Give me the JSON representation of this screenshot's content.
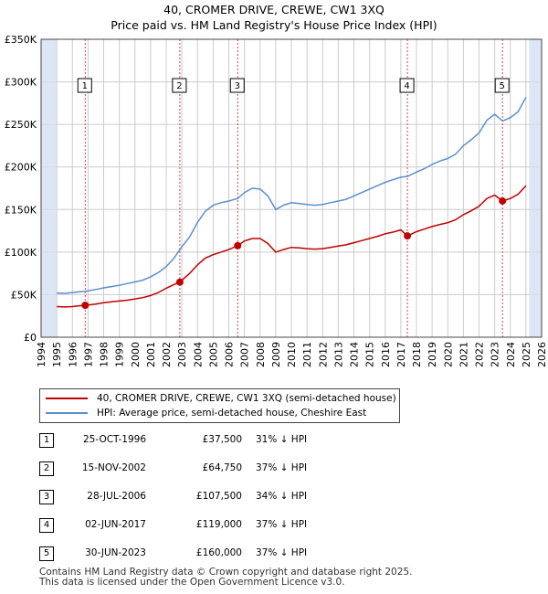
{
  "title": {
    "line1": "40, CROMER DRIVE, CREWE, CW1 3XQ",
    "line2": "Price paid vs. HM Land Registry's House Price Index (HPI)"
  },
  "colors": {
    "property": "#c00000",
    "hpi": "#5b8fd1",
    "shade": "#dde6f4",
    "grid": "#cccccc",
    "vline": "#cc4444"
  },
  "legend": {
    "property_label": "40, CROMER DRIVE, CREWE, CW1 3XQ (semi-detached house)",
    "hpi_label": "HPI: Average price, semi-detached house, Cheshire East"
  },
  "sales": [
    {
      "num": "1",
      "date": "25-OCT-1996",
      "price": "£37,500",
      "hpi": "31% ↓ HPI",
      "t": 1996.82,
      "value": 37500
    },
    {
      "num": "2",
      "date": "15-NOV-2002",
      "price": "£64,750",
      "hpi": "37% ↓ HPI",
      "t": 2002.87,
      "value": 64750
    },
    {
      "num": "3",
      "date": "28-JUL-2006",
      "price": "£107,500",
      "hpi": "34% ↓ HPI",
      "t": 2006.57,
      "value": 107500
    },
    {
      "num": "4",
      "date": "02-JUN-2017",
      "price": "£119,000",
      "hpi": "37% ↓ HPI",
      "t": 2017.42,
      "value": 119000
    },
    {
      "num": "5",
      "date": "30-JUN-2023",
      "price": "£160,000",
      "hpi": "37% ↓ HPI",
      "t": 2023.5,
      "value": 160000
    }
  ],
  "footer": {
    "line1": "Contains HM Land Registry data © Crown copyright and database right 2025.",
    "line2": "This data is licensed under the Open Government Licence v3.0."
  },
  "chart_data": {
    "type": "line",
    "title": "40, CROMER DRIVE, CREWE, CW1 3XQ — Price paid vs. HM Land Registry's House Price Index (HPI)",
    "xlabel": "",
    "ylabel": "",
    "xlim": [
      1994,
      2026
    ],
    "ylim": [
      0,
      350000
    ],
    "grid": true,
    "legend_position": "below",
    "x_ticks": [
      "1994",
      "1995",
      "1996",
      "1997",
      "1998",
      "1999",
      "2000",
      "2001",
      "2002",
      "2003",
      "2004",
      "2005",
      "2006",
      "2007",
      "2008",
      "2009",
      "2010",
      "2011",
      "2012",
      "2013",
      "2014",
      "2015",
      "2016",
      "2017",
      "2018",
      "2019",
      "2020",
      "2021",
      "2022",
      "2023",
      "2024",
      "2025",
      "2026"
    ],
    "y_ticks": [
      {
        "value": 0,
        "label": "£0"
      },
      {
        "value": 50000,
        "label": "£50K"
      },
      {
        "value": 100000,
        "label": "£100K"
      },
      {
        "value": 150000,
        "label": "£150K"
      },
      {
        "value": 200000,
        "label": "£200K"
      },
      {
        "value": 250000,
        "label": "£250K"
      },
      {
        "value": 300000,
        "label": "£300K"
      },
      {
        "value": 350000,
        "label": "£350K"
      }
    ],
    "shaded_ranges": [
      [
        1994,
        1995
      ],
      [
        2025.2,
        2026
      ]
    ],
    "series": [
      {
        "name": "HPI: Average price, semi-detached house, Cheshire East",
        "x": [
          1995.0,
          1995.5,
          1996.0,
          1996.5,
          1996.82,
          1997.5,
          1998.0,
          1998.5,
          1999.0,
          1999.5,
          2000.0,
          2000.5,
          2001.0,
          2001.5,
          2002.0,
          2002.5,
          2002.87,
          2003.5,
          2004.0,
          2004.5,
          2005.0,
          2005.5,
          2006.0,
          2006.57,
          2007.0,
          2007.5,
          2008.0,
          2008.5,
          2009.0,
          2009.5,
          2010.0,
          2010.5,
          2011.0,
          2011.5,
          2012.0,
          2012.5,
          2013.0,
          2013.5,
          2014.0,
          2014.5,
          2015.0,
          2015.5,
          2016.0,
          2016.5,
          2017.0,
          2017.42,
          2018.0,
          2018.5,
          2019.0,
          2019.5,
          2020.0,
          2020.5,
          2021.0,
          2021.5,
          2022.0,
          2022.5,
          2023.0,
          2023.5,
          2024.0,
          2024.5,
          2025.0
        ],
        "values": [
          52000,
          51500,
          52500,
          53500,
          54000,
          56000,
          58000,
          59500,
          61000,
          63000,
          65000,
          67000,
          71000,
          76000,
          83000,
          93000,
          103000,
          118000,
          135000,
          148000,
          155000,
          158000,
          160000,
          163000,
          170000,
          175000,
          174000,
          166000,
          150000,
          155000,
          158000,
          157000,
          156000,
          155000,
          156000,
          158000,
          160000,
          162000,
          166000,
          170000,
          174000,
          178000,
          182000,
          185000,
          188000,
          189000,
          194000,
          198000,
          203000,
          207000,
          210000,
          215000,
          225000,
          232000,
          240000,
          255000,
          262000,
          254000,
          258000,
          265000,
          282000
        ]
      },
      {
        "name": "40, CROMER DRIVE, CREWE, CW1 3XQ (semi-detached house)",
        "x": [
          1995.0,
          1995.5,
          1996.0,
          1996.5,
          1996.82,
          1997.5,
          1998.0,
          1998.5,
          1999.0,
          1999.5,
          2000.0,
          2000.5,
          2001.0,
          2001.5,
          2002.0,
          2002.5,
          2002.87,
          2003.5,
          2004.0,
          2004.5,
          2005.0,
          2005.5,
          2006.0,
          2006.57,
          2007.0,
          2007.5,
          2008.0,
          2008.5,
          2009.0,
          2009.5,
          2010.0,
          2010.5,
          2011.0,
          2011.5,
          2012.0,
          2012.5,
          2013.0,
          2013.5,
          2014.0,
          2014.5,
          2015.0,
          2015.5,
          2016.0,
          2016.5,
          2017.0,
          2017.42,
          2018.0,
          2018.5,
          2019.0,
          2019.5,
          2020.0,
          2020.5,
          2021.0,
          2021.5,
          2022.0,
          2022.5,
          2023.0,
          2023.5,
          2024.0,
          2024.5,
          2025.0
        ],
        "values": [
          36000,
          35500,
          36000,
          37000,
          37500,
          39000,
          40500,
          41500,
          42500,
          43500,
          45000,
          46500,
          49000,
          52500,
          57500,
          62000,
          64750,
          75000,
          85000,
          93000,
          97000,
          100000,
          103000,
          107500,
          113000,
          116000,
          116000,
          110000,
          100000,
          103000,
          105500,
          105000,
          104000,
          103500,
          104000,
          105500,
          107000,
          108500,
          111000,
          113500,
          116000,
          118500,
          121500,
          123500,
          126000,
          119000,
          124000,
          127000,
          130000,
          132500,
          134500,
          138000,
          144000,
          148500,
          154000,
          163000,
          167000,
          160000,
          163000,
          168000,
          178000
        ]
      }
    ]
  }
}
